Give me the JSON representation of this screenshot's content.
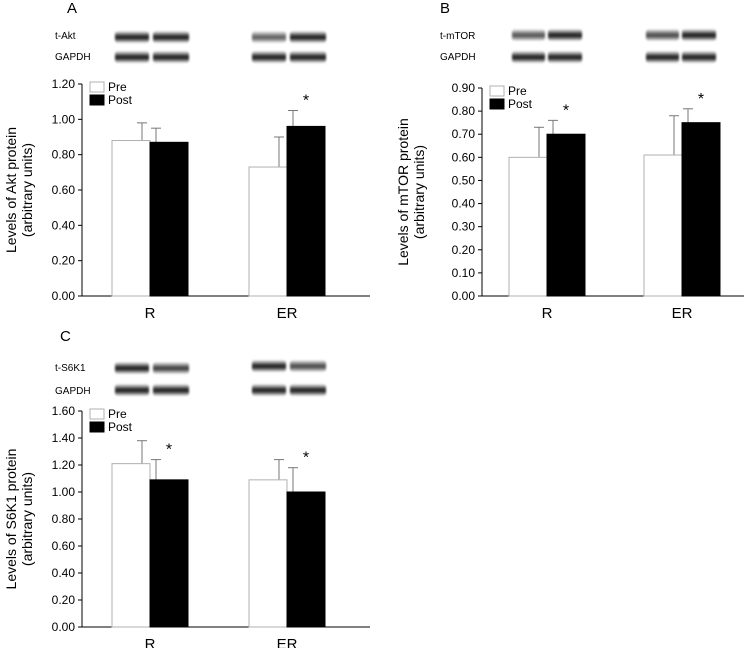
{
  "panels": [
    {
      "letter": "A",
      "blot": {
        "target_label": "t-Akt",
        "control_label": "GAPDH"
      },
      "chart_data": {
        "type": "bar",
        "categories": [
          "R",
          "ER"
        ],
        "series": [
          {
            "name": "Pre",
            "values": [
              0.88,
              0.73
            ],
            "errors": [
              0.1,
              0.17
            ],
            "color": "#ffffff"
          },
          {
            "name": "Post",
            "values": [
              0.87,
              0.96
            ],
            "errors": [
              0.08,
              0.09
            ],
            "color": "#000000"
          }
        ],
        "significance": [
          [
            false,
            true
          ]
        ],
        "ylabel": "Levels of Akt protein (arbitrary units)",
        "ylabel_line1": "Levels of Akt protein",
        "ylabel_line2": "(arbitrary units)",
        "ylim": [
          0,
          1.2
        ],
        "yticks": [
          "0.00",
          "0.20",
          "0.40",
          "0.60",
          "0.80",
          "1.00",
          "1.20"
        ],
        "marker": "*",
        "legend": "top-left"
      }
    },
    {
      "letter": "B",
      "blot": {
        "target_label": "t-mTOR",
        "control_label": "GAPDH"
      },
      "chart_data": {
        "type": "bar",
        "categories": [
          "R",
          "ER"
        ],
        "series": [
          {
            "name": "Pre",
            "values": [
              0.6,
              0.61
            ],
            "errors": [
              0.13,
              0.17
            ],
            "color": "#ffffff"
          },
          {
            "name": "Post",
            "values": [
              0.7,
              0.75
            ],
            "errors": [
              0.06,
              0.06
            ],
            "color": "#000000"
          }
        ],
        "significance": [
          [
            true,
            true
          ]
        ],
        "ylabel": "Levels of mTOR protein (arbitrary units)",
        "ylabel_line1": "Levels of mTOR protein",
        "ylabel_line2": "(arbitrary units)",
        "ylim": [
          0,
          0.9
        ],
        "yticks": [
          "0.00",
          "0.10",
          "0.20",
          "0.30",
          "0.40",
          "0.50",
          "0.60",
          "0.70",
          "0.80",
          "0.90"
        ],
        "marker": "*",
        "legend": "top-left"
      }
    },
    {
      "letter": "C",
      "blot": {
        "target_label": "t-S6K1",
        "control_label": "GAPDH"
      },
      "chart_data": {
        "type": "bar",
        "categories": [
          "R",
          "ER"
        ],
        "series": [
          {
            "name": "Pre",
            "values": [
              1.21,
              1.09
            ],
            "errors": [
              0.17,
              0.15
            ],
            "color": "#ffffff"
          },
          {
            "name": "Post",
            "values": [
              1.09,
              1.0
            ],
            "errors": [
              0.15,
              0.18
            ],
            "color": "#000000"
          }
        ],
        "significance": [
          [
            true,
            true
          ]
        ],
        "ylabel": "Levels of S6K1 protein (arbitrary units)",
        "ylabel_line1": "Levels of S6K1 protein",
        "ylabel_line2": "(arbitrary units)",
        "ylim": [
          0,
          1.6
        ],
        "yticks": [
          "0.00",
          "0.20",
          "0.40",
          "0.60",
          "0.80",
          "1.00",
          "1.20",
          "1.40",
          "1.60"
        ],
        "marker": "*",
        "legend": "top-left"
      }
    }
  ]
}
